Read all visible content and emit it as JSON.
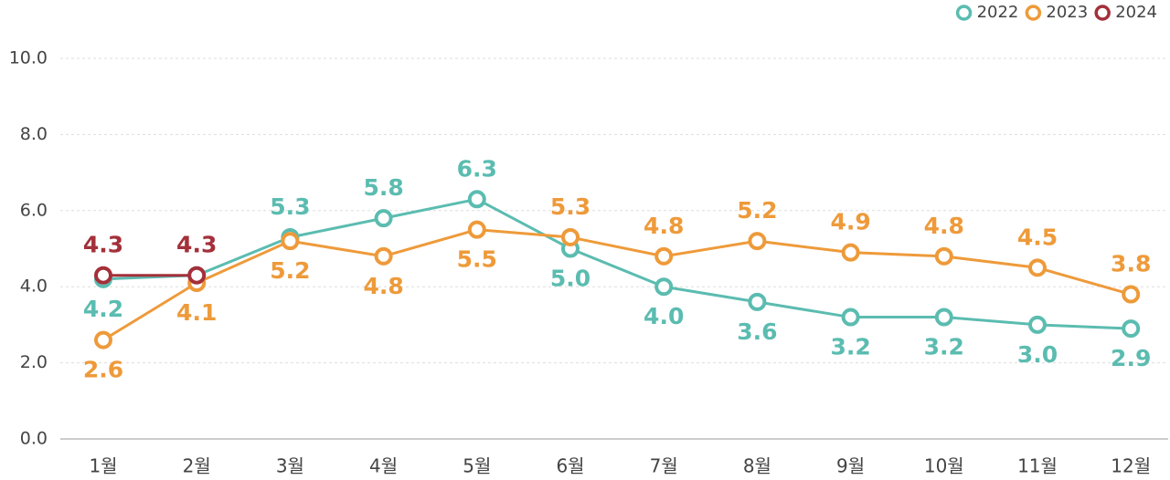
{
  "chart_data": {
    "type": "line",
    "categories": [
      "1월",
      "2월",
      "3월",
      "4월",
      "5월",
      "6월",
      "7월",
      "8월",
      "9월",
      "10월",
      "11월",
      "12월"
    ],
    "series": [
      {
        "name": "2022",
        "color": "#5bbcb0",
        "values": [
          4.2,
          4.3,
          5.3,
          5.8,
          6.3,
          5.0,
          4.0,
          3.6,
          3.2,
          3.2,
          3.0,
          2.9
        ],
        "value_labels": [
          "4.2",
          null,
          "5.3",
          "5.8",
          "6.3",
          "5.0",
          "4.0",
          "3.6",
          "3.2",
          "3.2",
          "3.0",
          "2.9"
        ]
      },
      {
        "name": "2023",
        "color": "#ee9a3a",
        "values": [
          2.6,
          4.1,
          5.2,
          4.8,
          5.5,
          5.3,
          4.8,
          5.2,
          4.9,
          4.8,
          4.5,
          3.8
        ],
        "value_labels": [
          "2.6",
          "4.1",
          "5.2",
          "4.8",
          "5.5",
          "5.3",
          "4.8",
          "5.2",
          "4.9",
          "4.8",
          "4.5",
          "3.8"
        ]
      },
      {
        "name": "2024",
        "color": "#a3303a",
        "values": [
          4.3,
          4.3,
          null,
          null,
          null,
          null,
          null,
          null,
          null,
          null,
          null,
          null
        ],
        "value_labels": [
          "4.3",
          "4.3",
          null,
          null,
          null,
          null,
          null,
          null,
          null,
          null,
          null,
          null
        ]
      }
    ],
    "ylim": [
      0,
      10
    ],
    "yticks": [
      {
        "value": 0,
        "label": "0.0"
      },
      {
        "value": 2,
        "label": "2.0"
      },
      {
        "value": 4,
        "label": "4.0"
      },
      {
        "value": 6,
        "label": "6.0"
      },
      {
        "value": 8,
        "label": "8.0"
      },
      {
        "value": 10,
        "label": "10.0"
      }
    ],
    "grid": true,
    "legend": "top-right"
  }
}
